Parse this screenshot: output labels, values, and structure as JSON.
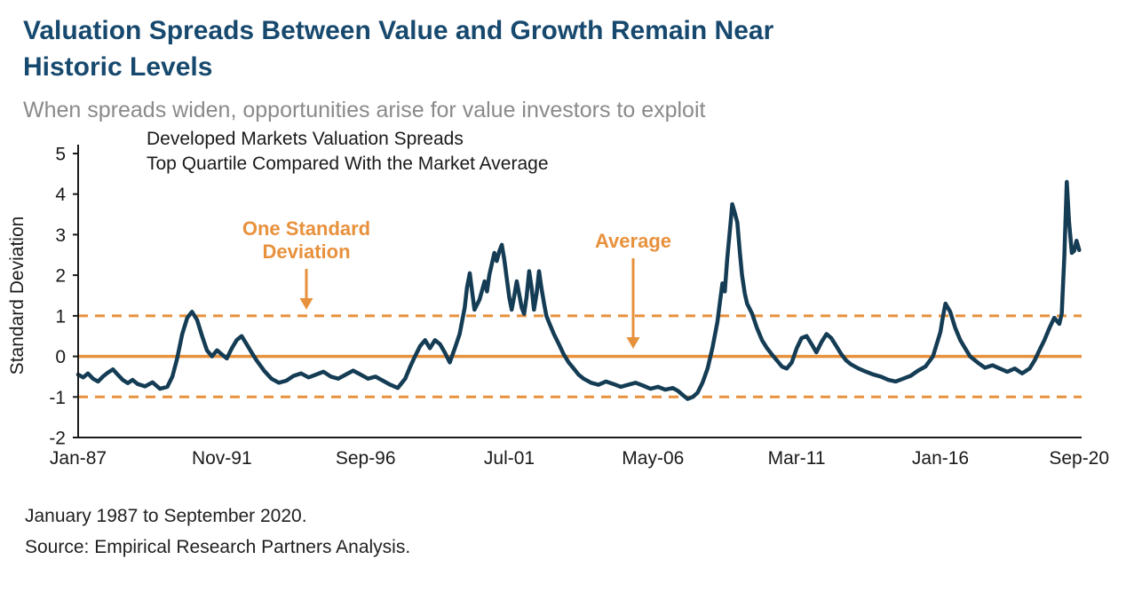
{
  "page": {
    "title_lines": [
      "Valuation Spreads Between Value and Growth Remain Near",
      "Historic Levels"
    ],
    "subtitle": "When spreads widen, opportunities arise for value investors to exploit",
    "footnotes": [
      "January 1987 to September 2020.",
      "Source: Empirical Research Partners Analysis."
    ]
  },
  "colors": {
    "title_navy": "#17496e",
    "accent_orange": "#e8913c",
    "series_navy": "#143c54",
    "subtitle_gray": "#8a8a8a",
    "axis_black": "#1a1a1a"
  },
  "chart_data": {
    "type": "line",
    "title_lines": [
      "Developed Markets Valuation Spreads",
      "Top Quartile Compared With the Market Average"
    ],
    "ylabel": "Standard Deviation",
    "ylim": [
      -2,
      5
    ],
    "xlim": [
      1987.0,
      2020.75
    ],
    "y_ticks": [
      5,
      4,
      3,
      2,
      1,
      0,
      -1,
      -2
    ],
    "x_ticks": [
      {
        "label": "Jan-87",
        "x": 1987.0
      },
      {
        "label": "Nov-91",
        "x": 1991.833
      },
      {
        "label": "Sep-96",
        "x": 1996.667
      },
      {
        "label": "Jul-01",
        "x": 2001.5
      },
      {
        "label": "May-06",
        "x": 2006.333
      },
      {
        "label": "Mar-11",
        "x": 2011.167
      },
      {
        "label": "Jan-16",
        "x": 2016.0
      },
      {
        "label": "Sep-20",
        "x": 2020.667
      }
    ],
    "reference_lines": [
      {
        "name": "plus-one-standard-deviation-line",
        "value": 1,
        "style": "dashed"
      },
      {
        "name": "average-line",
        "value": 0,
        "style": "solid"
      },
      {
        "name": "minus-one-standard-deviation-line",
        "value": -1,
        "style": "dashed"
      }
    ],
    "annotations": [
      {
        "id": "one-standard-deviation",
        "lines": [
          "One Standard",
          "Deviation"
        ],
        "arrow_to_value": 1
      },
      {
        "id": "average",
        "lines": [
          "Average"
        ],
        "arrow_to_value": 0
      }
    ],
    "legend": "off",
    "grid": "off",
    "series": [
      {
        "name": "Developed Markets Valuation Spread (Top Quartile vs. Market Average)",
        "points": [
          [
            1987.0,
            -0.45
          ],
          [
            1987.17,
            -0.52
          ],
          [
            1987.33,
            -0.42
          ],
          [
            1987.5,
            -0.55
          ],
          [
            1987.67,
            -0.62
          ],
          [
            1987.83,
            -0.5
          ],
          [
            1988.0,
            -0.4
          ],
          [
            1988.17,
            -0.32
          ],
          [
            1988.33,
            -0.45
          ],
          [
            1988.5,
            -0.58
          ],
          [
            1988.67,
            -0.66
          ],
          [
            1988.83,
            -0.58
          ],
          [
            1989.0,
            -0.68
          ],
          [
            1989.25,
            -0.74
          ],
          [
            1989.5,
            -0.64
          ],
          [
            1989.75,
            -0.8
          ],
          [
            1990.0,
            -0.75
          ],
          [
            1990.17,
            -0.5
          ],
          [
            1990.33,
            -0.05
          ],
          [
            1990.5,
            0.55
          ],
          [
            1990.67,
            0.95
          ],
          [
            1990.83,
            1.1
          ],
          [
            1991.0,
            0.9
          ],
          [
            1991.17,
            0.5
          ],
          [
            1991.33,
            0.15
          ],
          [
            1991.5,
            0.0
          ],
          [
            1991.67,
            0.15
          ],
          [
            1991.83,
            0.05
          ],
          [
            1992.0,
            -0.05
          ],
          [
            1992.17,
            0.2
          ],
          [
            1992.33,
            0.4
          ],
          [
            1992.5,
            0.5
          ],
          [
            1992.67,
            0.3
          ],
          [
            1992.83,
            0.1
          ],
          [
            1993.0,
            -0.1
          ],
          [
            1993.25,
            -0.35
          ],
          [
            1993.5,
            -0.55
          ],
          [
            1993.75,
            -0.65
          ],
          [
            1994.0,
            -0.6
          ],
          [
            1994.25,
            -0.48
          ],
          [
            1994.5,
            -0.42
          ],
          [
            1994.75,
            -0.52
          ],
          [
            1995.0,
            -0.45
          ],
          [
            1995.25,
            -0.38
          ],
          [
            1995.5,
            -0.5
          ],
          [
            1995.75,
            -0.55
          ],
          [
            1996.0,
            -0.45
          ],
          [
            1996.25,
            -0.35
          ],
          [
            1996.5,
            -0.45
          ],
          [
            1996.75,
            -0.55
          ],
          [
            1997.0,
            -0.5
          ],
          [
            1997.25,
            -0.6
          ],
          [
            1997.5,
            -0.7
          ],
          [
            1997.75,
            -0.78
          ],
          [
            1998.0,
            -0.55
          ],
          [
            1998.17,
            -0.25
          ],
          [
            1998.33,
            0.0
          ],
          [
            1998.5,
            0.25
          ],
          [
            1998.67,
            0.4
          ],
          [
            1998.83,
            0.2
          ],
          [
            1999.0,
            0.4
          ],
          [
            1999.17,
            0.3
          ],
          [
            1999.33,
            0.1
          ],
          [
            1999.5,
            -0.15
          ],
          [
            1999.67,
            0.2
          ],
          [
            1999.83,
            0.55
          ],
          [
            2000.0,
            1.2
          ],
          [
            2000.08,
            1.7
          ],
          [
            2000.17,
            2.05
          ],
          [
            2000.25,
            1.6
          ],
          [
            2000.33,
            1.15
          ],
          [
            2000.5,
            1.4
          ],
          [
            2000.67,
            1.85
          ],
          [
            2000.75,
            1.6
          ],
          [
            2000.83,
            2.0
          ],
          [
            2000.92,
            2.3
          ],
          [
            2001.0,
            2.55
          ],
          [
            2001.08,
            2.35
          ],
          [
            2001.17,
            2.6
          ],
          [
            2001.25,
            2.75
          ],
          [
            2001.33,
            2.4
          ],
          [
            2001.42,
            1.9
          ],
          [
            2001.5,
            1.45
          ],
          [
            2001.58,
            1.15
          ],
          [
            2001.67,
            1.5
          ],
          [
            2001.75,
            1.85
          ],
          [
            2001.83,
            1.55
          ],
          [
            2001.92,
            1.2
          ],
          [
            2002.0,
            1.05
          ],
          [
            2002.08,
            1.45
          ],
          [
            2002.17,
            2.1
          ],
          [
            2002.25,
            1.7
          ],
          [
            2002.33,
            1.15
          ],
          [
            2002.42,
            1.55
          ],
          [
            2002.5,
            2.1
          ],
          [
            2002.58,
            1.7
          ],
          [
            2002.67,
            1.3
          ],
          [
            2002.75,
            1.0
          ],
          [
            2002.83,
            0.85
          ],
          [
            2003.0,
            0.55
          ],
          [
            2003.17,
            0.3
          ],
          [
            2003.33,
            0.05
          ],
          [
            2003.5,
            -0.15
          ],
          [
            2003.67,
            -0.3
          ],
          [
            2003.83,
            -0.45
          ],
          [
            2004.0,
            -0.55
          ],
          [
            2004.25,
            -0.65
          ],
          [
            2004.5,
            -0.7
          ],
          [
            2004.75,
            -0.62
          ],
          [
            2005.0,
            -0.68
          ],
          [
            2005.25,
            -0.75
          ],
          [
            2005.5,
            -0.7
          ],
          [
            2005.75,
            -0.65
          ],
          [
            2006.0,
            -0.72
          ],
          [
            2006.25,
            -0.8
          ],
          [
            2006.5,
            -0.75
          ],
          [
            2006.75,
            -0.82
          ],
          [
            2007.0,
            -0.78
          ],
          [
            2007.17,
            -0.85
          ],
          [
            2007.33,
            -0.95
          ],
          [
            2007.5,
            -1.05
          ],
          [
            2007.67,
            -1.0
          ],
          [
            2007.83,
            -0.9
          ],
          [
            2008.0,
            -0.65
          ],
          [
            2008.17,
            -0.3
          ],
          [
            2008.33,
            0.2
          ],
          [
            2008.5,
            0.85
          ],
          [
            2008.58,
            1.3
          ],
          [
            2008.67,
            1.8
          ],
          [
            2008.75,
            1.6
          ],
          [
            2008.83,
            2.4
          ],
          [
            2008.92,
            3.1
          ],
          [
            2009.0,
            3.75
          ],
          [
            2009.08,
            3.55
          ],
          [
            2009.17,
            3.3
          ],
          [
            2009.25,
            2.6
          ],
          [
            2009.33,
            2.0
          ],
          [
            2009.42,
            1.55
          ],
          [
            2009.5,
            1.3
          ],
          [
            2009.67,
            1.05
          ],
          [
            2009.83,
            0.7
          ],
          [
            2010.0,
            0.4
          ],
          [
            2010.17,
            0.2
          ],
          [
            2010.33,
            0.05
          ],
          [
            2010.5,
            -0.1
          ],
          [
            2010.67,
            -0.25
          ],
          [
            2010.83,
            -0.3
          ],
          [
            2011.0,
            -0.15
          ],
          [
            2011.17,
            0.2
          ],
          [
            2011.33,
            0.45
          ],
          [
            2011.5,
            0.5
          ],
          [
            2011.67,
            0.3
          ],
          [
            2011.83,
            0.1
          ],
          [
            2012.0,
            0.35
          ],
          [
            2012.17,
            0.55
          ],
          [
            2012.33,
            0.45
          ],
          [
            2012.5,
            0.25
          ],
          [
            2012.67,
            0.05
          ],
          [
            2012.83,
            -0.1
          ],
          [
            2013.0,
            -0.2
          ],
          [
            2013.25,
            -0.3
          ],
          [
            2013.5,
            -0.38
          ],
          [
            2013.75,
            -0.45
          ],
          [
            2014.0,
            -0.5
          ],
          [
            2014.25,
            -0.58
          ],
          [
            2014.5,
            -0.62
          ],
          [
            2014.75,
            -0.55
          ],
          [
            2015.0,
            -0.48
          ],
          [
            2015.25,
            -0.35
          ],
          [
            2015.5,
            -0.25
          ],
          [
            2015.75,
            0.0
          ],
          [
            2016.0,
            0.6
          ],
          [
            2016.08,
            0.95
          ],
          [
            2016.17,
            1.3
          ],
          [
            2016.33,
            1.1
          ],
          [
            2016.5,
            0.7
          ],
          [
            2016.67,
            0.4
          ],
          [
            2016.83,
            0.2
          ],
          [
            2017.0,
            0.0
          ],
          [
            2017.25,
            -0.15
          ],
          [
            2017.5,
            -0.28
          ],
          [
            2017.75,
            -0.22
          ],
          [
            2018.0,
            -0.3
          ],
          [
            2018.25,
            -0.38
          ],
          [
            2018.5,
            -0.3
          ],
          [
            2018.75,
            -0.42
          ],
          [
            2019.0,
            -0.3
          ],
          [
            2019.17,
            -0.1
          ],
          [
            2019.33,
            0.15
          ],
          [
            2019.5,
            0.4
          ],
          [
            2019.67,
            0.7
          ],
          [
            2019.83,
            0.95
          ],
          [
            2020.0,
            0.8
          ],
          [
            2020.08,
            1.05
          ],
          [
            2020.17,
            2.5
          ],
          [
            2020.25,
            4.3
          ],
          [
            2020.33,
            3.3
          ],
          [
            2020.42,
            2.55
          ],
          [
            2020.5,
            2.6
          ],
          [
            2020.58,
            2.85
          ],
          [
            2020.67,
            2.62
          ]
        ]
      }
    ]
  }
}
